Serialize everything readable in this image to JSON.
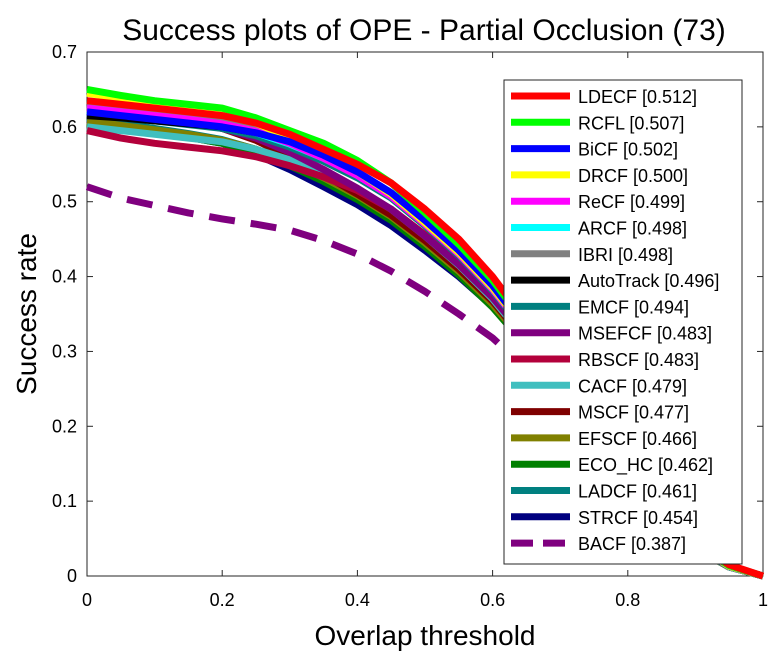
{
  "chart_data": {
    "type": "line",
    "title": "Success plots of OPE - Partial Occlusion (73)",
    "xlabel": "Overlap threshold",
    "ylabel": "Success rate",
    "xlim": [
      0,
      1
    ],
    "ylim": [
      0,
      0.7
    ],
    "xticks": [
      "0",
      "0.2",
      "0.4",
      "0.6",
      "0.8",
      "1"
    ],
    "yticks": [
      "0",
      "0.1",
      "0.2",
      "0.3",
      "0.4",
      "0.5",
      "0.6",
      "0.7"
    ],
    "legend_position": "top-right",
    "x": [
      0,
      0.05,
      0.1,
      0.15,
      0.2,
      0.25,
      0.3,
      0.35,
      0.4,
      0.45,
      0.5,
      0.55,
      0.6,
      0.65,
      0.7,
      0.75,
      0.8,
      0.85,
      0.9,
      0.95,
      1.0
    ],
    "series": [
      {
        "name": "LDECF",
        "label": "LDECF [0.512]",
        "color": "#ff0000",
        "dash": false,
        "values": [
          0.635,
          0.63,
          0.625,
          0.62,
          0.615,
          0.605,
          0.59,
          0.57,
          0.55,
          0.525,
          0.49,
          0.45,
          0.4,
          0.34,
          0.27,
          0.2,
          0.14,
          0.085,
          0.045,
          0.015,
          0.0
        ]
      },
      {
        "name": "RCFL",
        "label": "RCFL [0.507]",
        "color": "#00ff00",
        "dash": false,
        "values": [
          0.65,
          0.642,
          0.635,
          0.63,
          0.625,
          0.612,
          0.595,
          0.578,
          0.555,
          0.525,
          0.485,
          0.443,
          0.395,
          0.335,
          0.265,
          0.195,
          0.135,
          0.082,
          0.043,
          0.014,
          0.0
        ]
      },
      {
        "name": "BiCF",
        "label": "BiCF [0.502]",
        "color": "#0000ff",
        "dash": false,
        "values": [
          0.62,
          0.615,
          0.61,
          0.605,
          0.6,
          0.592,
          0.58,
          0.562,
          0.54,
          0.512,
          0.475,
          0.435,
          0.388,
          0.33,
          0.262,
          0.192,
          0.132,
          0.08,
          0.042,
          0.014,
          0.0
        ]
      },
      {
        "name": "DRCF",
        "label": "DRCF [0.500]",
        "color": "#ffff00",
        "dash": false,
        "values": [
          0.645,
          0.638,
          0.632,
          0.625,
          0.618,
          0.605,
          0.585,
          0.565,
          0.54,
          0.51,
          0.472,
          0.432,
          0.385,
          0.328,
          0.26,
          0.19,
          0.13,
          0.078,
          0.041,
          0.013,
          0.0
        ]
      },
      {
        "name": "ReCF",
        "label": "ReCF [0.499]",
        "color": "#ff00ff",
        "dash": false,
        "values": [
          0.625,
          0.62,
          0.615,
          0.61,
          0.604,
          0.594,
          0.578,
          0.558,
          0.535,
          0.507,
          0.47,
          0.43,
          0.383,
          0.326,
          0.258,
          0.189,
          0.129,
          0.078,
          0.04,
          0.013,
          0.0
        ]
      },
      {
        "name": "ARCF",
        "label": "ARCF [0.498]",
        "color": "#00ffff",
        "dash": false,
        "values": [
          0.622,
          0.617,
          0.612,
          0.607,
          0.601,
          0.592,
          0.577,
          0.558,
          0.536,
          0.51,
          0.476,
          0.438,
          0.392,
          0.33,
          0.258,
          0.188,
          0.128,
          0.077,
          0.04,
          0.013,
          0.0
        ]
      },
      {
        "name": "IBRI",
        "label": "IBRI [0.498]",
        "color": "#808080",
        "dash": false,
        "values": [
          0.628,
          0.622,
          0.617,
          0.612,
          0.606,
          0.596,
          0.58,
          0.56,
          0.537,
          0.508,
          0.47,
          0.43,
          0.383,
          0.326,
          0.258,
          0.188,
          0.128,
          0.077,
          0.04,
          0.013,
          0.0
        ]
      },
      {
        "name": "AutoTrack",
        "label": "AutoTrack [0.496]",
        "color": "#000000",
        "dash": false,
        "values": [
          0.615,
          0.612,
          0.608,
          0.604,
          0.6,
          0.592,
          0.578,
          0.56,
          0.538,
          0.51,
          0.472,
          0.432,
          0.384,
          0.326,
          0.257,
          0.187,
          0.127,
          0.076,
          0.039,
          0.013,
          0.0
        ]
      },
      {
        "name": "EMCF",
        "label": "EMCF [0.494]",
        "color": "#007f7f",
        "dash": false,
        "values": [
          0.618,
          0.613,
          0.608,
          0.603,
          0.598,
          0.588,
          0.573,
          0.554,
          0.532,
          0.505,
          0.468,
          0.428,
          0.381,
          0.324,
          0.256,
          0.187,
          0.127,
          0.076,
          0.039,
          0.013,
          0.0
        ]
      },
      {
        "name": "MSEFCF",
        "label": "MSEFCF [0.483]",
        "color": "#7f007f",
        "dash": false,
        "values": [
          0.63,
          0.622,
          0.614,
          0.606,
          0.598,
          0.585,
          0.566,
          0.543,
          0.518,
          0.49,
          0.454,
          0.416,
          0.372,
          0.318,
          0.252,
          0.185,
          0.126,
          0.076,
          0.039,
          0.013,
          0.0
        ]
      },
      {
        "name": "RBSCF",
        "label": "RBSCF [0.483]",
        "color": "#b3003b",
        "dash": false,
        "values": [
          0.595,
          0.585,
          0.578,
          0.573,
          0.568,
          0.56,
          0.548,
          0.533,
          0.515,
          0.49,
          0.456,
          0.418,
          0.373,
          0.318,
          0.252,
          0.184,
          0.125,
          0.075,
          0.039,
          0.013,
          0.0
        ]
      },
      {
        "name": "CACF",
        "label": "CACF [0.479]",
        "color": "#40bfbf",
        "dash": false,
        "values": [
          0.6,
          0.595,
          0.59,
          0.585,
          0.58,
          0.57,
          0.556,
          0.538,
          0.517,
          0.49,
          0.454,
          0.415,
          0.37,
          0.315,
          0.25,
          0.183,
          0.124,
          0.075,
          0.038,
          0.012,
          0.0
        ]
      },
      {
        "name": "MSCF",
        "label": "MSCF [0.477]",
        "color": "#7f0000",
        "dash": false,
        "values": [
          0.63,
          0.624,
          0.616,
          0.608,
          0.598,
          0.582,
          0.56,
          0.536,
          0.51,
          0.482,
          0.448,
          0.41,
          0.367,
          0.313,
          0.249,
          0.182,
          0.124,
          0.074,
          0.038,
          0.012,
          0.0
        ]
      },
      {
        "name": "EFSCF",
        "label": "EFSCF [0.466]",
        "color": "#808000",
        "dash": false,
        "values": [
          0.608,
          0.602,
          0.596,
          0.59,
          0.582,
          0.57,
          0.553,
          0.532,
          0.508,
          0.48,
          0.445,
          0.407,
          0.363,
          0.31,
          0.246,
          0.18,
          0.122,
          0.073,
          0.037,
          0.012,
          0.0
        ]
      },
      {
        "name": "ECO_HC",
        "label": "ECO_HC [0.462]",
        "color": "#008000",
        "dash": false,
        "values": [
          0.605,
          0.598,
          0.592,
          0.586,
          0.578,
          0.565,
          0.548,
          0.527,
          0.503,
          0.475,
          0.44,
          0.402,
          0.359,
          0.307,
          0.244,
          0.178,
          0.121,
          0.072,
          0.037,
          0.012,
          0.0
        ]
      },
      {
        "name": "LADCF",
        "label": "LADCF [0.461]",
        "color": "#008080",
        "dash": false,
        "values": [
          0.612,
          0.605,
          0.598,
          0.591,
          0.583,
          0.57,
          0.552,
          0.53,
          0.505,
          0.477,
          0.442,
          0.404,
          0.36,
          0.308,
          0.245,
          0.179,
          0.121,
          0.073,
          0.037,
          0.012,
          0.0
        ]
      },
      {
        "name": "STRCF",
        "label": "STRCF [0.454]",
        "color": "#00007f",
        "dash": false,
        "values": [
          0.61,
          0.602,
          0.594,
          0.586,
          0.578,
          0.563,
          0.543,
          0.52,
          0.496,
          0.468,
          0.435,
          0.4,
          0.36,
          0.308,
          0.246,
          0.18,
          0.122,
          0.073,
          0.038,
          0.012,
          0.0
        ]
      },
      {
        "name": "BACF",
        "label": "BACF [0.387]",
        "color": "#7f007f",
        "dash": true,
        "values": [
          0.52,
          0.505,
          0.495,
          0.485,
          0.477,
          0.47,
          0.462,
          0.448,
          0.43,
          0.407,
          0.38,
          0.35,
          0.318,
          0.277,
          0.225,
          0.17,
          0.118,
          0.072,
          0.037,
          0.012,
          0.0
        ]
      }
    ]
  }
}
